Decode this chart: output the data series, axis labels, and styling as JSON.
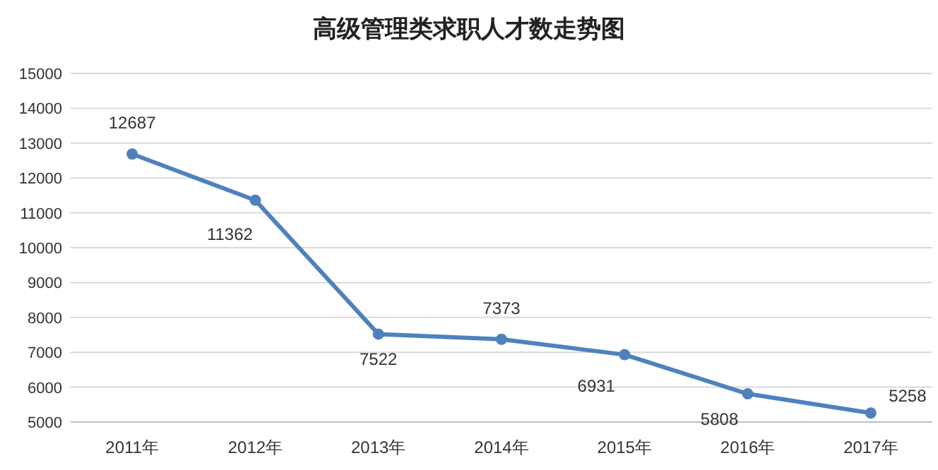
{
  "chart_data": {
    "type": "line",
    "title": "高级管理类求职人才数走势图",
    "categories": [
      "2011年",
      "2012年",
      "2013年",
      "2014年",
      "2015年",
      "2016年",
      "2017年"
    ],
    "series": [
      {
        "color": "#4f81bd",
        "values": [
          12687,
          11362,
          7522,
          7373,
          6931,
          5808,
          5258
        ]
      }
    ],
    "ylim": [
      5000,
      15000
    ],
    "yticks": [
      5000,
      6000,
      7000,
      8000,
      9000,
      10000,
      11000,
      12000,
      13000,
      14000,
      15000
    ],
    "grid": "y",
    "marker": "circle",
    "line_style": "solid",
    "data_labels": true
  }
}
